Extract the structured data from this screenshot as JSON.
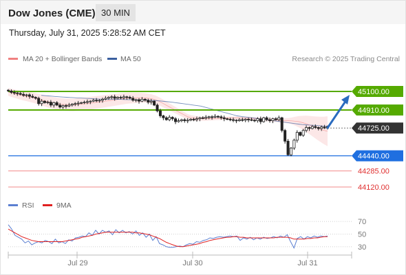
{
  "header": {
    "title": "Dow Jones (CME)",
    "timeframe": "30 MIN"
  },
  "datetime": "Thursday, July 31, 2025 5:28:52 AM CET",
  "legend": {
    "bollinger": {
      "label": "MA 20 + Bollinger Bands",
      "color": "#f08080"
    },
    "ma50": {
      "label": "MA 50",
      "color": "#3a5f9f"
    }
  },
  "credit": "Research © 2025 Trading Central",
  "rsi_legend": {
    "rsi": {
      "label": "RSI",
      "color": "#5b7fd1"
    },
    "ma9": {
      "label": "9MA",
      "color": "#e02020"
    }
  },
  "chart_data": [
    {
      "type": "line",
      "title": "",
      "y_scale": {
        "lo": 44120,
        "hi": 45100
      },
      "levels": [
        {
          "value": 45100,
          "label": "45100.00",
          "kind": "resistance",
          "color": "#55aa00",
          "badge": true,
          "text_color": "#ffffff"
        },
        {
          "value": 44910,
          "label": "44910.00",
          "kind": "resistance",
          "color": "#55aa00",
          "badge": true,
          "text_color": "#ffffff"
        },
        {
          "value": 44725,
          "label": "44725.00",
          "kind": "current",
          "color": "#333333",
          "badge": true,
          "text_color": "#ffffff"
        },
        {
          "value": 44440,
          "label": "44440.00",
          "kind": "pivot",
          "color": "#1f6fe0",
          "badge": true,
          "text_color": "#ffffff"
        },
        {
          "value": 44285,
          "label": "44285.00",
          "kind": "support",
          "color": "#f28a8a",
          "badge": false,
          "text_color": "#e03030"
        },
        {
          "value": 44120,
          "label": "44120.00",
          "kind": "support",
          "color": "#f28a8a",
          "badge": false,
          "text_color": "#e03030"
        }
      ],
      "price_closes": [
        45105,
        45090,
        45085,
        45080,
        45070,
        45060,
        45065,
        45050,
        45040,
        45030,
        44975,
        45000,
        44985,
        44990,
        44960,
        44985,
        44960,
        44940,
        44955,
        44950,
        44960,
        44970,
        44975,
        44980,
        44985,
        44990,
        44995,
        45000,
        45010,
        45005,
        45010,
        45020,
        45030,
        45040,
        45045,
        45030,
        45040,
        45035,
        45045,
        45040,
        45030,
        45010,
        45015,
        45000,
        45020,
        45010,
        44990,
        45000,
        44960,
        44900,
        44850,
        44830,
        44810,
        44835,
        44820,
        44790,
        44800,
        44810,
        44800,
        44805,
        44815,
        44810,
        44820,
        44830,
        44825,
        44835,
        44840,
        44835,
        44845,
        44840,
        44830,
        44820,
        44815,
        44810,
        44805,
        44800,
        44810,
        44805,
        44815,
        44810,
        44805,
        44800,
        44820,
        44790,
        44830,
        44810,
        44800,
        44820,
        44810,
        44830,
        44700,
        44590,
        44450,
        44520,
        44600,
        44680,
        44650,
        44700,
        44730,
        44720,
        44740,
        44730,
        44720,
        44735,
        44725,
        44740
      ],
      "ma50": [
        45060,
        45057,
        45054,
        45051,
        45048,
        45045,
        45042,
        45040,
        45038,
        45036,
        45034,
        45032,
        45030,
        45028,
        45026,
        45024,
        45022,
        45020,
        45020,
        45020,
        45020,
        45019,
        45018,
        45017,
        45016,
        45015,
        45014,
        45013,
        45012,
        45011,
        45010,
        45008,
        45005,
        45002,
        44998,
        44994,
        44990,
        44985,
        44980,
        44975,
        44970,
        44965,
        44960,
        44955,
        44950,
        44940,
        44930,
        44920,
        44910,
        44900,
        44890,
        44880,
        44870,
        44860,
        44850,
        44845,
        44840,
        44835,
        44830,
        44825,
        44820,
        44815,
        44810,
        44805,
        44800,
        44795,
        44790,
        44785,
        44780,
        44775,
        44770,
        44765,
        44760,
        44758,
        44755,
        44753,
        44750,
        44748,
        44745,
        44743
      ],
      "bollinger_mid": [
        45095,
        45085,
        45075,
        45065,
        45058,
        45050,
        45043,
        45035,
        45025,
        45015,
        45005,
        44995,
        44985,
        44978,
        44972,
        44968,
        44965,
        44963,
        44962,
        44965,
        44968,
        44972,
        44976,
        44980,
        44985,
        44990,
        44995,
        45000,
        45005,
        45010,
        45015,
        45020,
        45025,
        45030,
        45032,
        45033,
        45034,
        45035,
        45034,
        45030,
        45025,
        45015,
        45000,
        44980,
        44960,
        44940,
        44920,
        44900,
        44880,
        44860,
        44840,
        44830,
        44825,
        44822,
        44820,
        44820,
        44821,
        44822,
        44823,
        44824,
        44825,
        44826,
        44827,
        44828,
        44828,
        44827,
        44826,
        44825,
        44823,
        44821,
        44818,
        44815,
        44812,
        44810,
        44808,
        44806,
        44804,
        44802,
        44800,
        44798,
        44795,
        44790,
        44780,
        44770,
        44755,
        44740,
        44725,
        44712,
        44700,
        44692
      ],
      "rsi_scale": {
        "lo": 20,
        "hi": 80,
        "ticks": [
          70,
          50,
          30
        ]
      },
      "rsi": [
        65,
        58,
        48,
        45,
        42,
        36,
        39,
        33,
        36,
        38,
        36,
        40,
        38,
        35,
        42,
        36,
        38,
        35,
        41,
        39,
        44,
        45,
        47,
        46,
        52,
        48,
        56,
        50,
        56,
        53,
        55,
        49,
        57,
        52,
        56,
        52,
        54,
        50,
        55,
        48,
        52,
        45,
        50,
        40,
        46,
        35,
        33,
        30,
        29,
        29,
        30,
        31,
        30,
        33,
        35,
        34,
        38,
        37,
        40,
        41,
        44,
        43,
        45,
        46,
        45,
        46,
        47,
        46,
        47,
        40,
        44,
        42,
        45,
        41,
        44,
        42,
        45,
        43,
        44,
        46,
        44,
        47,
        45,
        49,
        38,
        28,
        43,
        46,
        42,
        46,
        44,
        47,
        45,
        47,
        46,
        47
      ],
      "rsi_ma9": [
        58,
        55,
        52,
        49,
        46,
        44,
        42,
        40,
        39,
        38,
        38,
        38,
        38,
        38,
        38,
        38,
        38,
        39,
        40,
        41,
        42,
        43,
        45,
        46,
        47,
        48,
        50,
        51,
        52,
        53,
        53,
        53,
        53,
        53,
        53,
        53,
        53,
        53,
        52,
        52,
        51,
        50,
        49,
        47,
        45,
        43,
        40,
        37,
        35,
        33,
        31,
        30,
        30,
        31,
        32,
        33,
        34,
        35,
        37,
        38,
        40,
        41,
        42,
        43,
        44,
        45,
        45,
        46,
        46,
        45,
        45,
        44,
        44,
        44,
        44,
        44,
        44,
        44,
        44,
        44,
        45,
        45,
        45,
        45,
        44,
        42,
        42,
        42,
        42,
        43,
        43,
        44,
        44,
        45,
        46,
        46
      ],
      "x_labels": [
        "Jul 29",
        "Jul 30",
        "Jul 31"
      ]
    }
  ]
}
